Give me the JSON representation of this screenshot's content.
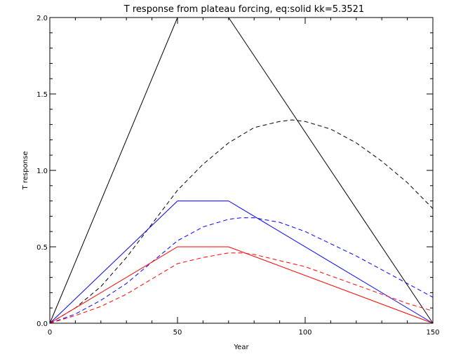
{
  "chart_data": {
    "type": "line",
    "title": "T response from plateau forcing, eq:solid kk=5.3521",
    "xlabel": "Year",
    "ylabel": "T response",
    "xlim": [
      0,
      150
    ],
    "ylim": [
      0.0,
      2.0
    ],
    "xticks": [
      0,
      50,
      100,
      150
    ],
    "xtick_labels": [
      "0",
      "50",
      "100",
      "150"
    ],
    "yticks": [
      0.0,
      0.5,
      1.0,
      1.5,
      2.0
    ],
    "ytick_labels": [
      "0.0",
      "0.5",
      "1.0",
      "1.5",
      "2.0"
    ],
    "grid": false,
    "series": [
      {
        "color": "#000000",
        "style": "solid",
        "x": [
          0,
          50,
          70,
          150
        ],
        "y": [
          0.0,
          2.0,
          2.0,
          0.0
        ]
      },
      {
        "color": "#000000",
        "style": "dashed",
        "x": [
          0,
          10,
          20,
          30,
          40,
          50,
          60,
          70,
          80,
          90,
          95,
          100,
          110,
          120,
          130,
          140,
          150
        ],
        "y": [
          0.0,
          0.1,
          0.24,
          0.43,
          0.65,
          0.87,
          1.04,
          1.18,
          1.28,
          1.32,
          1.33,
          1.32,
          1.27,
          1.18,
          1.06,
          0.92,
          0.75
        ]
      },
      {
        "color": "#0000ff",
        "style": "solid",
        "x": [
          0,
          50,
          70,
          150
        ],
        "y": [
          0.0,
          0.8,
          0.8,
          0.0
        ]
      },
      {
        "color": "#0000ff",
        "style": "dashed",
        "x": [
          0,
          10,
          20,
          30,
          40,
          50,
          60,
          70,
          75,
          80,
          90,
          100,
          110,
          120,
          130,
          140,
          150
        ],
        "y": [
          0.0,
          0.06,
          0.15,
          0.26,
          0.4,
          0.54,
          0.63,
          0.68,
          0.69,
          0.69,
          0.66,
          0.6,
          0.52,
          0.44,
          0.35,
          0.26,
          0.17
        ]
      },
      {
        "color": "#ff0000",
        "style": "solid",
        "x": [
          0,
          50,
          70,
          150
        ],
        "y": [
          0.0,
          0.5,
          0.5,
          0.0
        ]
      },
      {
        "color": "#ff0000",
        "style": "dashed",
        "x": [
          0,
          10,
          20,
          30,
          40,
          50,
          60,
          70,
          75,
          80,
          90,
          100,
          110,
          120,
          130,
          140,
          150
        ],
        "y": [
          0.0,
          0.05,
          0.11,
          0.19,
          0.29,
          0.39,
          0.43,
          0.46,
          0.46,
          0.45,
          0.41,
          0.37,
          0.31,
          0.25,
          0.19,
          0.13,
          0.08
        ]
      }
    ]
  }
}
